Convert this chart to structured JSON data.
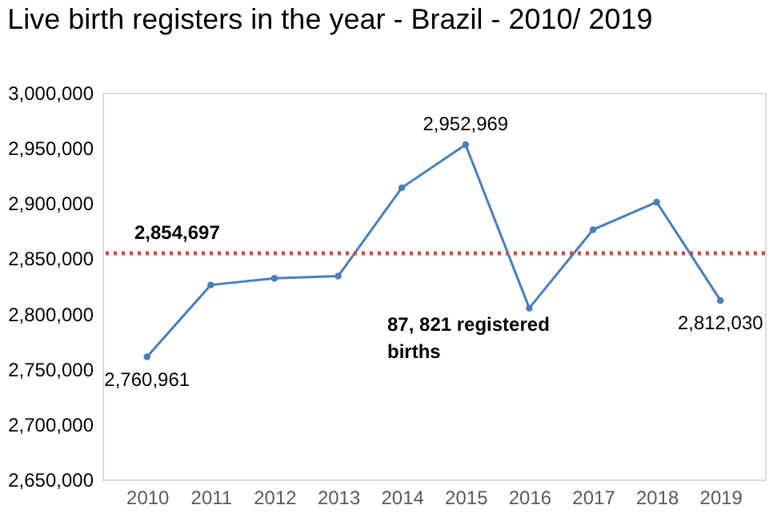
{
  "chart_data": {
    "type": "line",
    "title": "Live birth registers in the year - Brazil - 2010/ 2019",
    "categories": [
      "2010",
      "2011",
      "2012",
      "2013",
      "2014",
      "2015",
      "2016",
      "2017",
      "2018",
      "2019"
    ],
    "series": [
      {
        "color": "#4a7ebb",
        "values": [
          2760961,
          2826000,
          2832000,
          2834000,
          2914000,
          2952969,
          2805000,
          2876000,
          2901000,
          2812030
        ],
        "value_labels": [
          "2,760,961",
          null,
          null,
          null,
          null,
          "2,952,969",
          null,
          null,
          null,
          "2,812,030"
        ]
      }
    ],
    "ylim": [
      2650000,
      3000000
    ],
    "yticks": [
      {
        "value": 2650000,
        "label": "2,650,000"
      },
      {
        "value": 2700000,
        "label": "2,700,000"
      },
      {
        "value": 2750000,
        "label": "2,750,000"
      },
      {
        "value": 2800000,
        "label": "2,800,000"
      },
      {
        "value": 2850000,
        "label": "2,850,000"
      },
      {
        "value": 2900000,
        "label": "2,900,000"
      },
      {
        "value": 2950000,
        "label": "2,950,000"
      },
      {
        "value": 3000000,
        "label": "3,000,000"
      }
    ],
    "ref_lines": [
      {
        "axis": "y",
        "value": 2854697,
        "label": "2,854,697",
        "color": "#c0504d",
        "line_style": "dotted"
      }
    ],
    "annotations": [
      "87, 821 registered births"
    ],
    "marker": "circle",
    "line_style": "solid",
    "grid": false
  }
}
